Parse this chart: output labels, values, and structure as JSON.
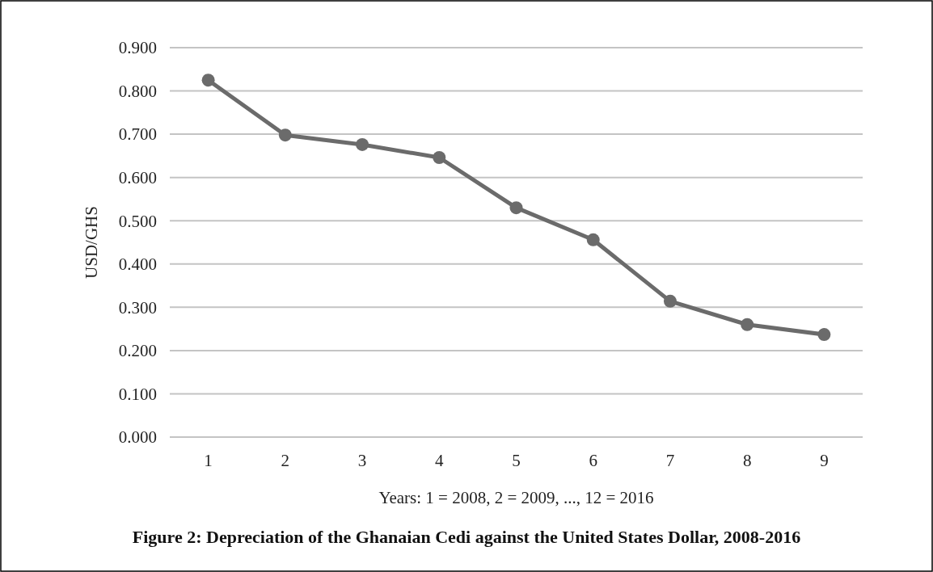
{
  "chart_data": {
    "type": "line",
    "title": "Figure 2: Depreciation of the Ghanaian Cedi against the United States Dollar, 2008-2016",
    "xlabel": "Years: 1 = 2008, 2 = 2009, ..., 12 = 2016",
    "ylabel": "USD/GHS",
    "categories": [
      "1",
      "2",
      "3",
      "4",
      "5",
      "6",
      "7",
      "8",
      "9"
    ],
    "series": [
      {
        "color": "#6b6b6b",
        "values": [
          0.825,
          0.698,
          0.676,
          0.646,
          0.53,
          0.456,
          0.314,
          0.26,
          0.237
        ]
      }
    ],
    "ylim": [
      0,
      0.9
    ],
    "yticks": [
      {
        "value": 0,
        "label": "0.000"
      },
      {
        "value": 0.1,
        "label": "0.100"
      },
      {
        "value": 0.2,
        "label": "0.200"
      },
      {
        "value": 0.3,
        "label": "0.300"
      },
      {
        "value": 0.4,
        "label": "0.400"
      },
      {
        "value": 0.5,
        "label": "0.500"
      },
      {
        "value": 0.6,
        "label": "0.600"
      },
      {
        "value": 0.7,
        "label": "0.700"
      },
      {
        "value": 0.8,
        "label": "0.800"
      },
      {
        "value": 0.9,
        "label": "0.900"
      }
    ],
    "grid": "y",
    "marker": "circle",
    "line_style": "solid"
  }
}
